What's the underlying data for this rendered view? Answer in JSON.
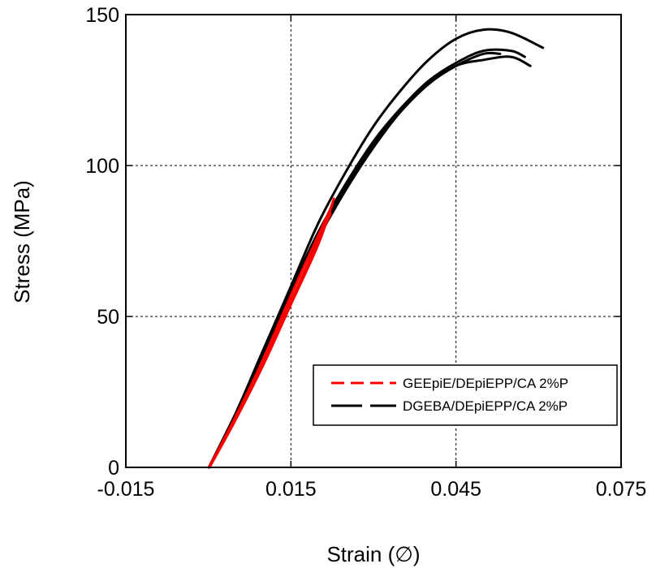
{
  "chart_data": {
    "type": "line",
    "xlabel": "Strain (∅)",
    "ylabel": "Stress (MPa)",
    "xlim": [
      -0.015,
      0.075
    ],
    "ylim": [
      0,
      150
    ],
    "xticks": [
      "-0.015",
      "0.015",
      "0.045",
      "0.075"
    ],
    "xtick_values": [
      -0.015,
      0.015,
      0.045,
      0.075
    ],
    "yticks": [
      "0",
      "50",
      "100",
      "150"
    ],
    "ytick_values": [
      0,
      50,
      100,
      150
    ],
    "grid": true,
    "legend_position": "lower-right",
    "legend": [
      {
        "label": "GEEpiE/DEpiEPP/CA 2%P",
        "color": "#ff0000",
        "style": "dashed"
      },
      {
        "label": "DGEBA/DEpiEPP/CA 2%P",
        "color": "#000000",
        "style": "dashed"
      }
    ],
    "series": [
      {
        "group": 0,
        "color": "#ff0000",
        "x": [
          0.0001,
          0.005,
          0.01,
          0.015,
          0.02,
          0.0228
        ],
        "y": [
          0,
          16,
          34,
          54,
          74,
          89
        ]
      },
      {
        "group": 0,
        "color": "#ff0000",
        "x": [
          0.0001,
          0.005,
          0.01,
          0.015,
          0.02,
          0.0225
        ],
        "y": [
          0,
          17,
          36,
          57,
          77,
          87
        ]
      },
      {
        "group": 0,
        "color": "#ff0000",
        "x": [
          0.0002,
          0.005,
          0.01,
          0.015,
          0.019,
          0.0222
        ],
        "y": [
          0,
          16,
          35,
          55,
          71,
          84
        ]
      },
      {
        "group": 1,
        "color": "#000000",
        "x": [
          0.0001,
          0.005,
          0.01,
          0.015,
          0.02,
          0.025,
          0.03,
          0.035,
          0.04,
          0.045,
          0.05,
          0.055,
          0.0608
        ],
        "y": [
          0,
          18,
          39,
          60,
          81,
          98,
          113,
          125,
          135,
          142,
          145,
          144,
          139
        ]
      },
      {
        "group": 1,
        "color": "#000000",
        "x": [
          0.0001,
          0.005,
          0.01,
          0.015,
          0.02,
          0.025,
          0.03,
          0.035,
          0.04,
          0.045,
          0.05,
          0.055,
          0.0585
        ],
        "y": [
          0,
          18,
          38,
          58,
          76,
          92,
          106,
          118,
          127,
          133,
          135,
          136,
          133
        ]
      },
      {
        "group": 1,
        "color": "#000000",
        "x": [
          0.0001,
          0.005,
          0.01,
          0.015,
          0.02,
          0.025,
          0.03,
          0.035,
          0.04,
          0.045,
          0.05,
          0.055,
          0.0575
        ],
        "y": [
          0,
          18,
          39,
          59,
          78,
          94,
          108,
          119,
          128,
          134,
          138,
          138,
          136
        ]
      },
      {
        "group": 1,
        "color": "#000000",
        "x": [
          0.0001,
          0.005,
          0.01,
          0.015,
          0.02,
          0.025,
          0.03,
          0.035,
          0.04,
          0.045,
          0.05,
          0.053
        ],
        "y": [
          0,
          18,
          38,
          59,
          77,
          93,
          107,
          118,
          127,
          133,
          137,
          137
        ]
      }
    ]
  }
}
